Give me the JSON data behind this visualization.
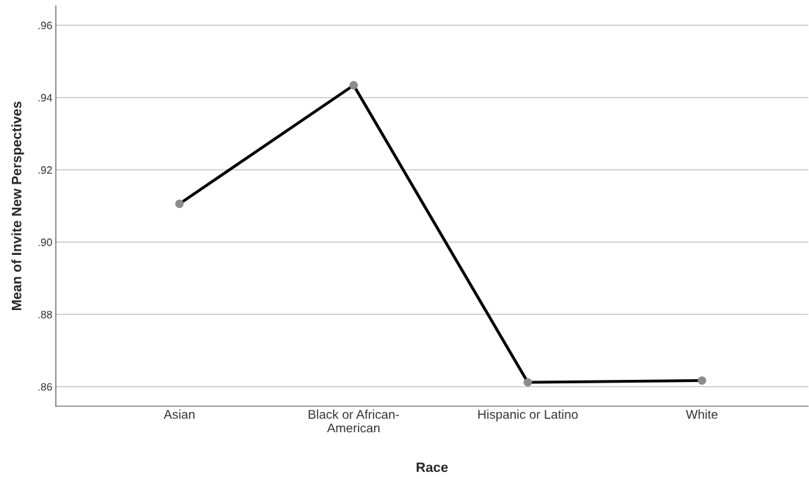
{
  "chart_data": {
    "type": "line",
    "xlabel": "Race",
    "ylabel": "Mean of Invite New Perspectives",
    "categories": [
      "Asian",
      "Black or African-\nAmerican",
      "Hispanic or Latino",
      "White"
    ],
    "series": [
      {
        "color": "#000000",
        "values": [
          0.9106,
          0.9434,
          0.8612,
          0.8617
        ]
      }
    ],
    "ylim": [
      0.8546,
      0.9654
    ],
    "yticks": [
      {
        "value": 0.86,
        "label": ".86"
      },
      {
        "value": 0.88,
        "label": ".88"
      },
      {
        "value": 0.9,
        "label": ".90"
      },
      {
        "value": 0.92,
        "label": ".92"
      },
      {
        "value": 0.94,
        "label": ".94"
      },
      {
        "value": 0.96,
        "label": ".96"
      }
    ],
    "grid": "y",
    "marker": "circle",
    "line_style": "solid",
    "legend": false
  }
}
